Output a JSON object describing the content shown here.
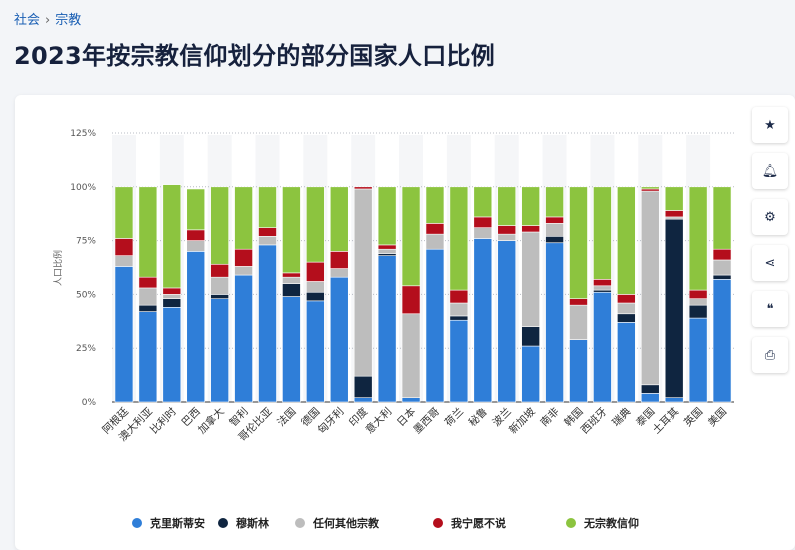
{
  "breadcrumb": {
    "items": [
      "社会",
      "宗教"
    ],
    "separator": "›"
  },
  "page_title": "2023年按宗教信仰划分的部分国家人口比例",
  "toolbar": [
    {
      "name": "star-icon",
      "glyph": "★"
    },
    {
      "name": "bell-icon",
      "glyph": "🔔︎"
    },
    {
      "name": "gear-icon",
      "glyph": "⚙"
    },
    {
      "name": "share-icon",
      "glyph": "⋖"
    },
    {
      "name": "quote-icon",
      "glyph": "❝"
    },
    {
      "name": "print-icon",
      "glyph": "⎙"
    }
  ],
  "chart_data": {
    "type": "bar",
    "stacked": true,
    "ylabel": "人口比例",
    "ylim": [
      0,
      125
    ],
    "yticks": [
      "0%",
      "25%",
      "50%",
      "75%",
      "100%",
      "125%"
    ],
    "categories": [
      "阿根廷",
      "澳大利亚",
      "比利时",
      "巴西",
      "加拿大",
      "智利",
      "哥伦比亚",
      "法国",
      "德国",
      "匈牙利",
      "印度",
      "意大利",
      "日本",
      "墨西哥",
      "荷兰",
      "秘鲁",
      "波兰",
      "新加坡",
      "南非",
      "韩国",
      "西班牙",
      "瑞典",
      "泰国",
      "土耳其",
      "英国",
      "美国"
    ],
    "series": [
      {
        "name": "克里斯蒂安",
        "color": "#2f7ed8",
        "values": [
          63,
          42,
          44,
          70,
          48,
          59,
          73,
          49,
          47,
          58,
          2,
          68,
          2,
          71,
          38,
          76,
          75,
          26,
          74,
          29,
          51,
          37,
          4,
          2,
          39,
          57
        ]
      },
      {
        "name": "穆斯林",
        "color": "#0f2540",
        "values": [
          0,
          3,
          4,
          0,
          2,
          0,
          0,
          6,
          4,
          0,
          10,
          1,
          0,
          0,
          2,
          0,
          0,
          9,
          3,
          0,
          1,
          4,
          4,
          83,
          6,
          2
        ]
      },
      {
        "name": "任何其他宗教",
        "color": "#bdbdbd",
        "values": [
          5,
          8,
          2,
          5,
          8,
          4,
          4,
          3,
          5,
          4,
          87,
          2,
          39,
          7,
          6,
          5,
          3,
          44,
          6,
          16,
          2,
          5,
          90,
          1,
          3,
          7
        ]
      },
      {
        "name": "我宁愿不说",
        "color": "#b40e1c",
        "values": [
          8,
          5,
          3,
          5,
          6,
          8,
          4,
          2,
          9,
          8,
          1,
          2,
          13,
          5,
          6,
          5,
          4,
          3,
          3,
          3,
          3,
          4,
          1,
          3,
          4,
          5
        ]
      },
      {
        "name": "无宗教信仰",
        "color": "#8cc43f",
        "values": [
          24,
          42,
          48,
          19,
          36,
          29,
          19,
          40,
          35,
          30,
          0,
          27,
          46,
          17,
          48,
          14,
          18,
          18,
          14,
          52,
          43,
          50,
          1,
          11,
          48,
          29
        ]
      }
    ],
    "grid": true,
    "legend_position": "bottom"
  }
}
